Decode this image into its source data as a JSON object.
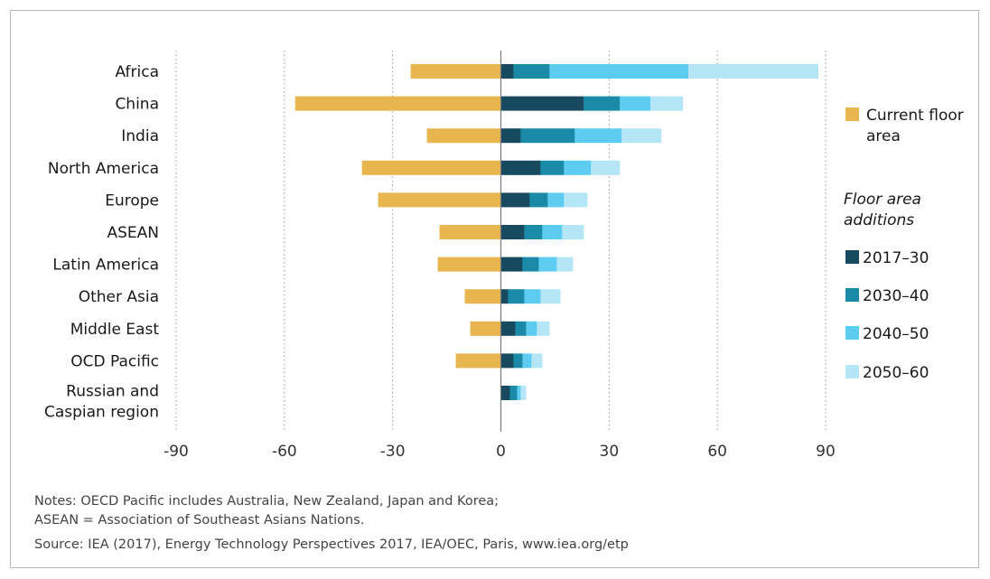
{
  "chart_data": {
    "type": "bar",
    "orientation": "horizontal",
    "stacked": true,
    "title": "",
    "xlabel": "",
    "ylabel": "",
    "xlim": [
      -90,
      90
    ],
    "xticks": [
      -90,
      -60,
      -30,
      0,
      30,
      60,
      90
    ],
    "grid": "vertical-dotted",
    "legend_position": "right",
    "categories": [
      [
        "Africa"
      ],
      [
        "China"
      ],
      [
        "India"
      ],
      [
        "North America"
      ],
      [
        "Europe"
      ],
      [
        "ASEAN"
      ],
      [
        "Latin America"
      ],
      [
        "Other Asia"
      ],
      [
        "Middle East"
      ],
      [
        "OCD Pacific"
      ],
      [
        "Russian and",
        "Caspian region"
      ]
    ],
    "series": [
      {
        "name": "Current floor area",
        "color": "#e8b54f",
        "values": [
          -25,
          -57,
          -20.5,
          -38.5,
          -34,
          -17,
          -17.5,
          -10,
          -8.5,
          -12.5,
          0
        ]
      },
      {
        "name": "2017–30",
        "color": "#174a5e",
        "values": [
          3.5,
          23,
          5.5,
          11,
          8,
          6.5,
          6,
          2,
          4,
          3.5,
          2.5
        ]
      },
      {
        "name": "2030–40",
        "color": "#1a8aa8",
        "values": [
          10,
          10,
          15,
          6.5,
          5,
          5,
          4.5,
          4.5,
          3,
          2.5,
          2
        ]
      },
      {
        "name": "2040–50",
        "color": "#5ccdf0",
        "values": [
          38.5,
          8.5,
          13,
          7.5,
          4.5,
          5.5,
          5,
          4.5,
          3,
          2.5,
          1
        ]
      },
      {
        "name": "2050–60",
        "color": "#b5e6f7",
        "values": [
          36,
          9,
          11,
          8,
          6.5,
          6,
          4.5,
          5.5,
          3.5,
          3,
          1.5
        ]
      }
    ],
    "legend": {
      "current_label": [
        "Current floor",
        "area"
      ],
      "additions_heading": [
        "Floor area",
        "additions"
      ]
    }
  },
  "notes": {
    "line1": "Notes: OECD Pacific includes Australia, New Zealand, Japan and Korea;",
    "line2": "ASEAN = Association of Southeast Asians Nations.",
    "source": "Source: IEA (2017), Energy Technology Perspectives 2017, IEA/OEC, Paris, www.iea.org/etp"
  }
}
